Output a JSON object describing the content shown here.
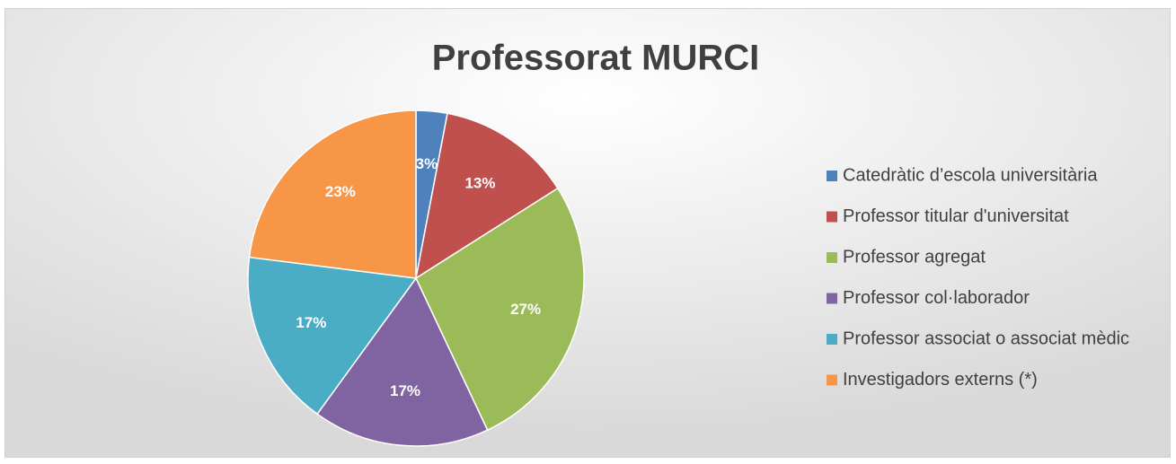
{
  "chart_data": {
    "type": "pie",
    "title": "Professorat MURCI",
    "categories": [
      "Catedràtic d’escola universitària",
      "Professor titular d'universitat",
      "Professor agregat",
      "Professor col·laborador",
      "Professor associat o associat mèdic",
      "Investigadors externs (*)"
    ],
    "values": [
      3,
      13,
      27,
      17,
      17,
      23
    ],
    "value_labels": [
      "3%",
      "13%",
      "27%",
      "17%",
      "17%",
      "23%"
    ],
    "colors": [
      "#4f81bd",
      "#c0504d",
      "#9bbb59",
      "#8064a2",
      "#4bacc6",
      "#f79646"
    ],
    "legend": "right"
  }
}
